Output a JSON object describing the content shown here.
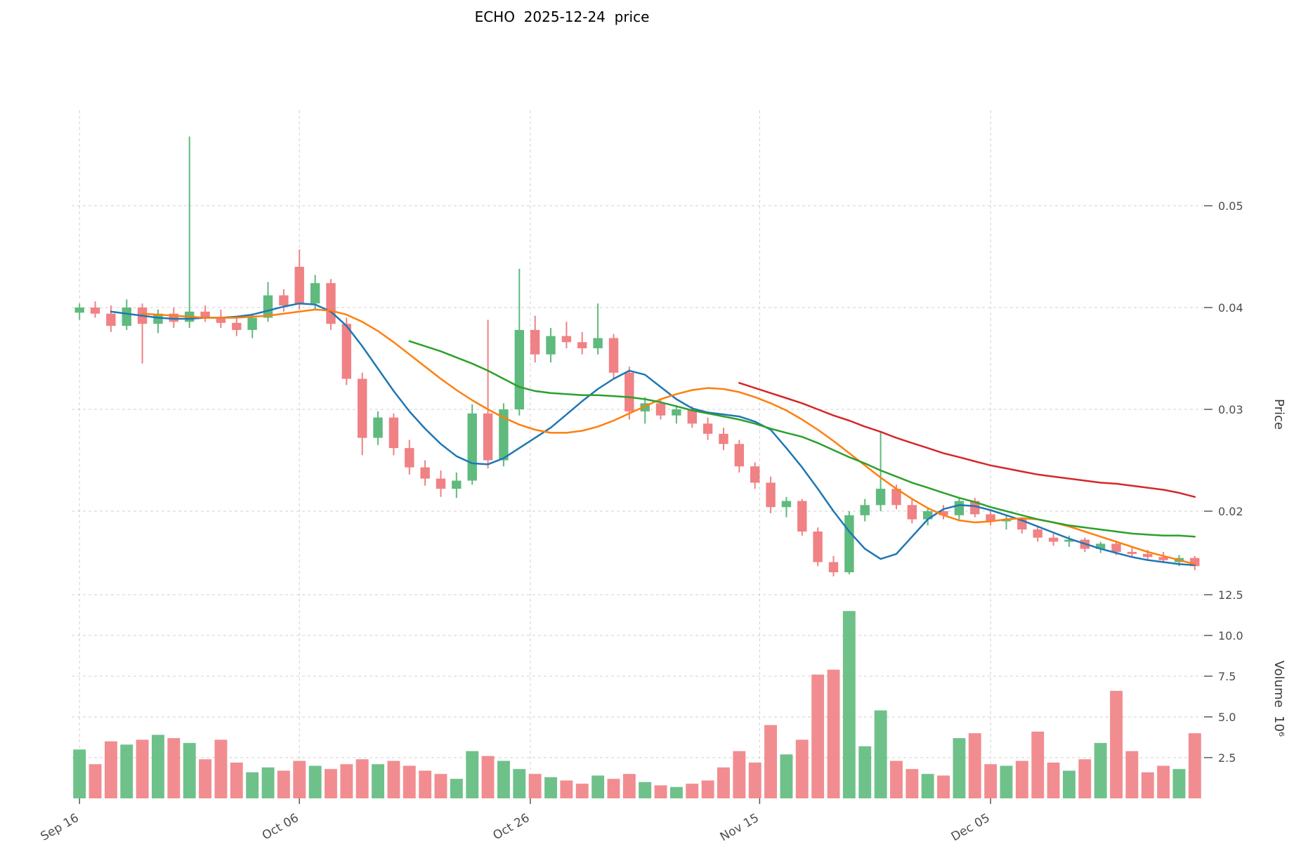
{
  "colors": {
    "up": "#5fba7d",
    "down": "#f08184",
    "ma_fast": "#1f77b4",
    "ma_mid": "#ff7f0e",
    "ma_slow": "#2ca02c",
    "ma_long": "#d62728",
    "grid": "#c9c9c9",
    "tick_text": "#4d4d4d",
    "background": "#ffffff"
  },
  "chart_data": {
    "type": "candlestick",
    "symbol": "ECHO",
    "date": "2025-12-24",
    "title": "ECHO  2025-12-24  price",
    "price_axis_label": "Price",
    "volume_axis_label": "Volume  10⁶",
    "grid": true,
    "legend": "none",
    "price_ylim": [
      0.013,
      0.059
    ],
    "volume_ylim": [
      0,
      13
    ],
    "price_ticks": [
      "0.05",
      "0.04",
      "0.03",
      "0.02"
    ],
    "volume_ticks": [
      "12.5",
      "10.0",
      "7.5",
      "5.0",
      "2.5"
    ],
    "x_ticks": [
      {
        "index": 0,
        "label": "Sep 16"
      },
      {
        "index": 14,
        "label": "Oct 06"
      },
      {
        "index": 28.7,
        "label": "Oct 26"
      },
      {
        "index": 43.3,
        "label": "Nov 15"
      },
      {
        "index": 58,
        "label": "Dec 05"
      }
    ],
    "volume_unit_millions": true,
    "candles": [
      {
        "d": "2025-09-16",
        "o": 0.0395,
        "h": 0.0404,
        "l": 0.0388,
        "c": 0.04,
        "v": 3.0
      },
      {
        "d": "2025-09-17",
        "o": 0.04,
        "h": 0.0406,
        "l": 0.039,
        "c": 0.0394,
        "v": 2.1
      },
      {
        "d": "2025-09-18",
        "o": 0.0394,
        "h": 0.0402,
        "l": 0.0376,
        "c": 0.0382,
        "v": 3.5
      },
      {
        "d": "2025-09-19",
        "o": 0.0382,
        "h": 0.0408,
        "l": 0.0378,
        "c": 0.04,
        "v": 3.3
      },
      {
        "d": "2025-09-22",
        "o": 0.04,
        "h": 0.0404,
        "l": 0.0345,
        "c": 0.0384,
        "v": 3.6
      },
      {
        "d": "2025-09-23",
        "o": 0.0384,
        "h": 0.0398,
        "l": 0.0375,
        "c": 0.0394,
        "v": 3.9
      },
      {
        "d": "2025-09-24",
        "o": 0.0394,
        "h": 0.04,
        "l": 0.038,
        "c": 0.0386,
        "v": 3.7
      },
      {
        "d": "2025-09-25",
        "o": 0.0386,
        "h": 0.0568,
        "l": 0.038,
        "c": 0.0396,
        "v": 3.4
      },
      {
        "d": "2025-09-26",
        "o": 0.0396,
        "h": 0.0402,
        "l": 0.0386,
        "c": 0.039,
        "v": 2.4
      },
      {
        "d": "2025-09-29",
        "o": 0.039,
        "h": 0.0398,
        "l": 0.038,
        "c": 0.0385,
        "v": 3.6
      },
      {
        "d": "2025-09-30",
        "o": 0.0385,
        "h": 0.0392,
        "l": 0.0372,
        "c": 0.0378,
        "v": 2.2
      },
      {
        "d": "2025-10-01",
        "o": 0.0378,
        "h": 0.0394,
        "l": 0.037,
        "c": 0.039,
        "v": 1.6
      },
      {
        "d": "2025-10-02",
        "o": 0.039,
        "h": 0.0425,
        "l": 0.0386,
        "c": 0.0412,
        "v": 1.9
      },
      {
        "d": "2025-10-03",
        "o": 0.0412,
        "h": 0.0418,
        "l": 0.0396,
        "c": 0.0402,
        "v": 1.7
      },
      {
        "d": "2025-10-06",
        "o": 0.044,
        "h": 0.0457,
        "l": 0.0398,
        "c": 0.0404,
        "v": 2.3
      },
      {
        "d": "2025-10-07",
        "o": 0.0404,
        "h": 0.0432,
        "l": 0.0398,
        "c": 0.0424,
        "v": 2.0
      },
      {
        "d": "2025-10-08",
        "o": 0.0424,
        "h": 0.0428,
        "l": 0.0378,
        "c": 0.0384,
        "v": 1.8
      },
      {
        "d": "2025-10-09",
        "o": 0.0384,
        "h": 0.039,
        "l": 0.0324,
        "c": 0.033,
        "v": 2.1
      },
      {
        "d": "2025-10-10",
        "o": 0.033,
        "h": 0.0336,
        "l": 0.0255,
        "c": 0.0272,
        "v": 2.4
      },
      {
        "d": "2025-10-13",
        "o": 0.0272,
        "h": 0.0298,
        "l": 0.0265,
        "c": 0.0292,
        "v": 2.1
      },
      {
        "d": "2025-10-14",
        "o": 0.0292,
        "h": 0.0296,
        "l": 0.0255,
        "c": 0.0262,
        "v": 2.3
      },
      {
        "d": "2025-10-15",
        "o": 0.0262,
        "h": 0.027,
        "l": 0.0236,
        "c": 0.0243,
        "v": 2.0
      },
      {
        "d": "2025-10-16",
        "o": 0.0243,
        "h": 0.025,
        "l": 0.0225,
        "c": 0.0232,
        "v": 1.7
      },
      {
        "d": "2025-10-17",
        "o": 0.0232,
        "h": 0.024,
        "l": 0.0214,
        "c": 0.0222,
        "v": 1.5
      },
      {
        "d": "2025-10-20",
        "o": 0.0222,
        "h": 0.0238,
        "l": 0.0213,
        "c": 0.023,
        "v": 1.2
      },
      {
        "d": "2025-10-21",
        "o": 0.023,
        "h": 0.0305,
        "l": 0.0226,
        "c": 0.0296,
        "v": 2.9
      },
      {
        "d": "2025-10-22",
        "o": 0.0296,
        "h": 0.0388,
        "l": 0.0242,
        "c": 0.025,
        "v": 2.6
      },
      {
        "d": "2025-10-23",
        "o": 0.025,
        "h": 0.0306,
        "l": 0.0244,
        "c": 0.03,
        "v": 2.3
      },
      {
        "d": "2025-10-24",
        "o": 0.03,
        "h": 0.0438,
        "l": 0.0294,
        "c": 0.0378,
        "v": 1.8
      },
      {
        "d": "2025-10-27",
        "o": 0.0378,
        "h": 0.0392,
        "l": 0.0346,
        "c": 0.0354,
        "v": 1.5
      },
      {
        "d": "2025-10-28",
        "o": 0.0354,
        "h": 0.038,
        "l": 0.0346,
        "c": 0.0372,
        "v": 1.3
      },
      {
        "d": "2025-10-29",
        "o": 0.0372,
        "h": 0.0386,
        "l": 0.036,
        "c": 0.0366,
        "v": 1.1
      },
      {
        "d": "2025-10-30",
        "o": 0.0366,
        "h": 0.0376,
        "l": 0.0354,
        "c": 0.036,
        "v": 0.9
      },
      {
        "d": "2025-10-31",
        "o": 0.036,
        "h": 0.0404,
        "l": 0.0354,
        "c": 0.037,
        "v": 1.4
      },
      {
        "d": "2025-11-03",
        "o": 0.037,
        "h": 0.0374,
        "l": 0.033,
        "c": 0.0336,
        "v": 1.2
      },
      {
        "d": "2025-11-04",
        "o": 0.0336,
        "h": 0.0342,
        "l": 0.029,
        "c": 0.0298,
        "v": 1.5
      },
      {
        "d": "2025-11-05",
        "o": 0.0298,
        "h": 0.0312,
        "l": 0.0286,
        "c": 0.0306,
        "v": 1.0
      },
      {
        "d": "2025-11-06",
        "o": 0.0306,
        "h": 0.031,
        "l": 0.029,
        "c": 0.0294,
        "v": 0.8
      },
      {
        "d": "2025-11-07",
        "o": 0.0294,
        "h": 0.0304,
        "l": 0.0286,
        "c": 0.03,
        "v": 0.7
      },
      {
        "d": "2025-11-10",
        "o": 0.03,
        "h": 0.0303,
        "l": 0.0282,
        "c": 0.0286,
        "v": 0.9
      },
      {
        "d": "2025-11-11",
        "o": 0.0286,
        "h": 0.0292,
        "l": 0.027,
        "c": 0.0276,
        "v": 1.1
      },
      {
        "d": "2025-11-12",
        "o": 0.0276,
        "h": 0.0282,
        "l": 0.026,
        "c": 0.0266,
        "v": 1.9
      },
      {
        "d": "2025-11-13",
        "o": 0.0266,
        "h": 0.027,
        "l": 0.0238,
        "c": 0.0244,
        "v": 2.9
      },
      {
        "d": "2025-11-14",
        "o": 0.0244,
        "h": 0.0248,
        "l": 0.0222,
        "c": 0.0228,
        "v": 2.2
      },
      {
        "d": "2025-11-17",
        "o": 0.0228,
        "h": 0.0234,
        "l": 0.0198,
        "c": 0.0204,
        "v": 4.5
      },
      {
        "d": "2025-11-18",
        "o": 0.0204,
        "h": 0.0214,
        "l": 0.0194,
        "c": 0.021,
        "v": 2.7
      },
      {
        "d": "2025-11-19",
        "o": 0.021,
        "h": 0.0212,
        "l": 0.0176,
        "c": 0.018,
        "v": 3.6
      },
      {
        "d": "2025-11-20",
        "o": 0.018,
        "h": 0.0184,
        "l": 0.0146,
        "c": 0.015,
        "v": 7.6
      },
      {
        "d": "2025-11-21",
        "o": 0.015,
        "h": 0.0156,
        "l": 0.0136,
        "c": 0.014,
        "v": 7.9
      },
      {
        "d": "2025-11-24",
        "o": 0.014,
        "h": 0.02,
        "l": 0.0138,
        "c": 0.0196,
        "v": 11.5
      },
      {
        "d": "2025-11-25",
        "o": 0.0196,
        "h": 0.0212,
        "l": 0.019,
        "c": 0.0206,
        "v": 3.2
      },
      {
        "d": "2025-11-26",
        "o": 0.0206,
        "h": 0.0278,
        "l": 0.02,
        "c": 0.0222,
        "v": 5.4
      },
      {
        "d": "2025-11-27",
        "o": 0.0222,
        "h": 0.0226,
        "l": 0.0202,
        "c": 0.0206,
        "v": 2.3
      },
      {
        "d": "2025-11-28",
        "o": 0.0206,
        "h": 0.0212,
        "l": 0.0188,
        "c": 0.0192,
        "v": 1.8
      },
      {
        "d": "2025-12-01",
        "o": 0.0192,
        "h": 0.0204,
        "l": 0.0186,
        "c": 0.02,
        "v": 1.5
      },
      {
        "d": "2025-12-02",
        "o": 0.02,
        "h": 0.0206,
        "l": 0.0192,
        "c": 0.0196,
        "v": 1.4
      },
      {
        "d": "2025-12-03",
        "o": 0.0196,
        "h": 0.0214,
        "l": 0.0192,
        "c": 0.021,
        "v": 3.7
      },
      {
        "d": "2025-12-04",
        "o": 0.021,
        "h": 0.0213,
        "l": 0.0194,
        "c": 0.0197,
        "v": 4.0
      },
      {
        "d": "2025-12-05",
        "o": 0.0197,
        "h": 0.0202,
        "l": 0.0186,
        "c": 0.019,
        "v": 2.1
      },
      {
        "d": "2025-12-08",
        "o": 0.019,
        "h": 0.0196,
        "l": 0.0182,
        "c": 0.0192,
        "v": 2.0
      },
      {
        "d": "2025-12-09",
        "o": 0.0192,
        "h": 0.0194,
        "l": 0.0178,
        "c": 0.0182,
        "v": 2.3
      },
      {
        "d": "2025-12-10",
        "o": 0.0182,
        "h": 0.0186,
        "l": 0.017,
        "c": 0.0174,
        "v": 4.1
      },
      {
        "d": "2025-12-11",
        "o": 0.0174,
        "h": 0.0178,
        "l": 0.0166,
        "c": 0.017,
        "v": 2.2
      },
      {
        "d": "2025-12-12",
        "o": 0.017,
        "h": 0.0176,
        "l": 0.0165,
        "c": 0.0172,
        "v": 1.7
      },
      {
        "d": "2025-12-15",
        "o": 0.0172,
        "h": 0.0174,
        "l": 0.016,
        "c": 0.0163,
        "v": 2.4
      },
      {
        "d": "2025-12-16",
        "o": 0.0163,
        "h": 0.017,
        "l": 0.0159,
        "c": 0.0168,
        "v": 3.4
      },
      {
        "d": "2025-12-17",
        "o": 0.0168,
        "h": 0.0171,
        "l": 0.0157,
        "c": 0.016,
        "v": 6.6
      },
      {
        "d": "2025-12-18",
        "o": 0.016,
        "h": 0.0165,
        "l": 0.0155,
        "c": 0.0158,
        "v": 2.9
      },
      {
        "d": "2025-12-19",
        "o": 0.0158,
        "h": 0.0162,
        "l": 0.0152,
        "c": 0.0155,
        "v": 1.6
      },
      {
        "d": "2025-12-22",
        "o": 0.0155,
        "h": 0.016,
        "l": 0.0149,
        "c": 0.0152,
        "v": 2.0
      },
      {
        "d": "2025-12-23",
        "o": 0.015,
        "h": 0.0157,
        "l": 0.0146,
        "c": 0.0154,
        "v": 1.8
      },
      {
        "d": "2025-12-24",
        "o": 0.0154,
        "h": 0.0156,
        "l": 0.0142,
        "c": 0.0146,
        "v": 4.0
      }
    ],
    "moving_averages": [
      {
        "name": "fast",
        "color_key": "ma_fast",
        "start_index": 2,
        "values": [
          0.0396,
          0.0394,
          0.0392,
          0.039,
          0.0389,
          0.0389,
          0.039,
          0.039,
          0.0391,
          0.0393,
          0.0397,
          0.0401,
          0.0404,
          0.0403,
          0.0396,
          0.0382,
          0.0362,
          0.034,
          0.0318,
          0.0298,
          0.0281,
          0.0266,
          0.0254,
          0.0247,
          0.0246,
          0.0252,
          0.0262,
          0.0272,
          0.0282,
          0.0295,
          0.0308,
          0.032,
          0.033,
          0.0338,
          0.0334,
          0.0322,
          0.031,
          0.0301,
          0.0297,
          0.0295,
          0.0293,
          0.0288,
          0.028,
          0.0262,
          0.0243,
          0.0222,
          0.02,
          0.018,
          0.0163,
          0.0153,
          0.0158,
          0.0175,
          0.0192,
          0.0202,
          0.0206,
          0.0205,
          0.0201,
          0.0196,
          0.0191,
          0.0185,
          0.0179,
          0.0173,
          0.0168,
          0.0163,
          0.0159,
          0.0155,
          0.0152,
          0.015,
          0.0148,
          0.0147
        ]
      },
      {
        "name": "mid",
        "color_key": "ma_mid",
        "start_index": 4,
        "values": [
          0.0394,
          0.0393,
          0.0392,
          0.0391,
          0.039,
          0.039,
          0.039,
          0.0391,
          0.0392,
          0.0394,
          0.0396,
          0.0398,
          0.0397,
          0.0393,
          0.0386,
          0.0377,
          0.0366,
          0.0354,
          0.0342,
          0.033,
          0.0319,
          0.0309,
          0.03,
          0.0292,
          0.0285,
          0.028,
          0.0277,
          0.0277,
          0.0279,
          0.0283,
          0.0289,
          0.0296,
          0.0303,
          0.031,
          0.0315,
          0.0319,
          0.0321,
          0.032,
          0.0317,
          0.0312,
          0.0306,
          0.0299,
          0.029,
          0.028,
          0.0269,
          0.0257,
          0.0245,
          0.0233,
          0.0222,
          0.0212,
          0.0203,
          0.0196,
          0.0191,
          0.0189,
          0.019,
          0.0192,
          0.0193,
          0.0192,
          0.0189,
          0.0185,
          0.018,
          0.0175,
          0.017,
          0.0165,
          0.016,
          0.0156,
          0.0152,
          0.0148
        ]
      },
      {
        "name": "slow",
        "color_key": "ma_slow",
        "start_index": 21,
        "values": [
          0.0367,
          0.0362,
          0.0357,
          0.0351,
          0.0345,
          0.0338,
          0.033,
          0.0322,
          0.0318,
          0.0316,
          0.0315,
          0.0314,
          0.0314,
          0.0313,
          0.0312,
          0.031,
          0.0307,
          0.0303,
          0.0299,
          0.0296,
          0.0293,
          0.029,
          0.0286,
          0.0281,
          0.0277,
          0.0273,
          0.0267,
          0.026,
          0.0253,
          0.0247,
          0.024,
          0.0234,
          0.0228,
          0.0223,
          0.0218,
          0.0213,
          0.0209,
          0.0204,
          0.02,
          0.0196,
          0.0192,
          0.0189,
          0.0186,
          0.0184,
          0.0182,
          0.018,
          0.0178,
          0.0177,
          0.0176,
          0.0176,
          0.0175
        ]
      },
      {
        "name": "long",
        "color_key": "ma_long",
        "start_index": 42,
        "values": [
          0.0326,
          0.0321,
          0.0316,
          0.0311,
          0.0306,
          0.03,
          0.0294,
          0.0289,
          0.0283,
          0.0278,
          0.0272,
          0.0267,
          0.0262,
          0.0257,
          0.0253,
          0.0249,
          0.0245,
          0.0242,
          0.0239,
          0.0236,
          0.0234,
          0.0232,
          0.023,
          0.0228,
          0.0227,
          0.0225,
          0.0223,
          0.0221,
          0.0218,
          0.0214
        ]
      }
    ]
  }
}
